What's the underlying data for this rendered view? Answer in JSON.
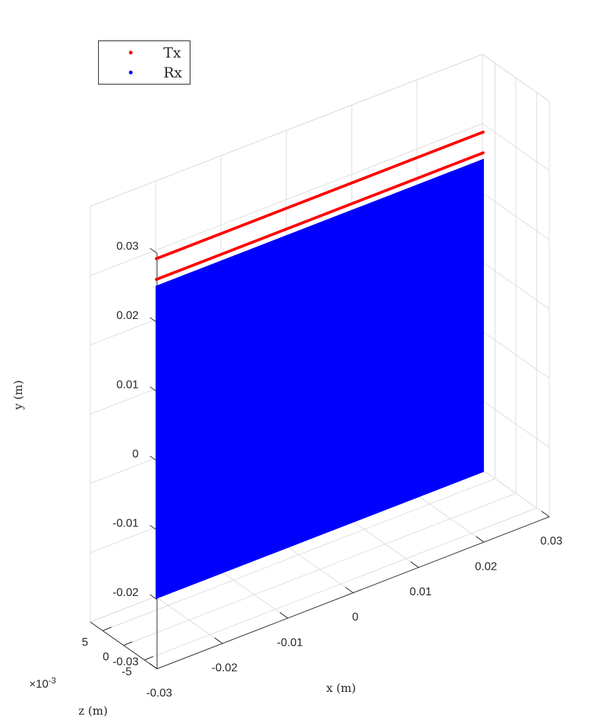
{
  "chart_data": {
    "type": "scatter",
    "view": "3d",
    "xlabel": "x (m)",
    "ylabel": "y (m)",
    "zlabel": "z (m)",
    "z_exponent_label": "×10",
    "z_exponent_power": "-3",
    "xlim": [
      -0.03,
      0.03
    ],
    "ylim": [
      -0.03,
      0.03
    ],
    "zlim": [
      -0.008,
      0.008
    ],
    "xticks": [
      -0.03,
      -0.02,
      -0.01,
      0,
      0.01,
      0.02,
      0.03
    ],
    "xtick_labels": [
      "-0.03",
      "-0.02",
      "-0.01",
      "0",
      "0.01",
      "0.02",
      "0.03"
    ],
    "yticks": [
      -0.03,
      -0.02,
      -0.01,
      0,
      0.01,
      0.02,
      0.03
    ],
    "ytick_labels": [
      "-0.03",
      "-0.02",
      "-0.01",
      "0",
      "0.01",
      "0.02",
      "0.03"
    ],
    "zticks": [
      -0.005,
      0,
      0.005
    ],
    "ztick_labels": [
      "-5",
      "0",
      "5"
    ],
    "grid": true,
    "legend_position": "top-left",
    "series": [
      {
        "name": "Tx",
        "color": "#ff0000",
        "marker": "dot",
        "lines": [
          {
            "y": 0.024,
            "x_range": [
              -0.025,
              0.025
            ],
            "z": 0
          },
          {
            "y": 0.021,
            "x_range": [
              -0.025,
              0.025
            ],
            "z": 0
          }
        ]
      },
      {
        "name": "Rx",
        "color": "#0000ff",
        "marker": "dot",
        "plane": {
          "x_range": [
            -0.025,
            0.025
          ],
          "y_range": [
            -0.025,
            0.02
          ],
          "z": 0
        }
      }
    ]
  }
}
